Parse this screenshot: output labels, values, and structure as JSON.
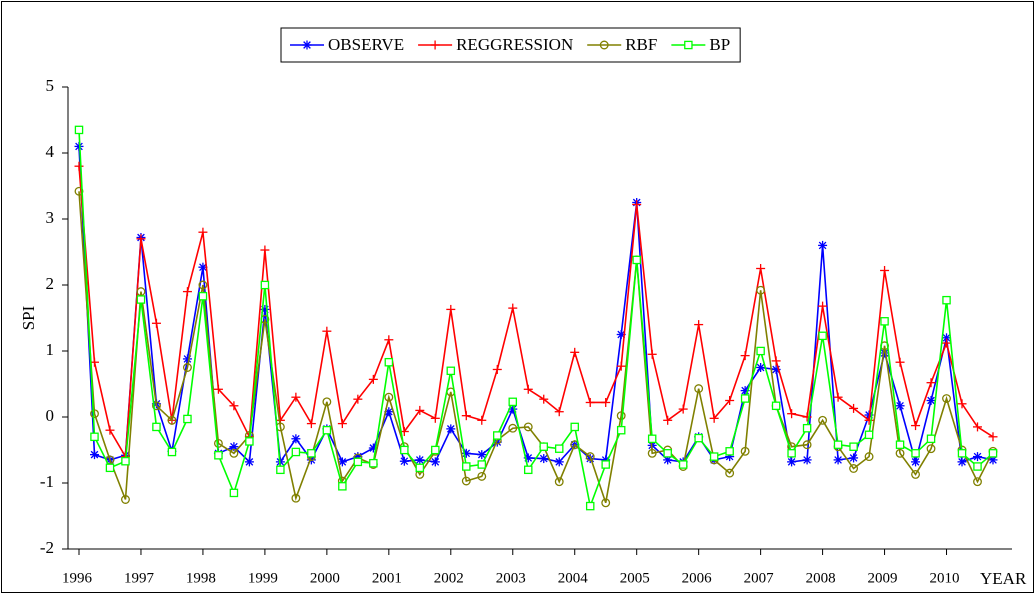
{
  "chart_data": {
    "type": "line",
    "x_label": "YEAR",
    "y_label": "SPI",
    "categories": [
      "1996",
      null,
      null,
      null,
      "1997",
      null,
      null,
      null,
      "1998",
      null,
      null,
      null,
      "1999",
      null,
      null,
      null,
      "2000",
      null,
      null,
      null,
      "2001",
      null,
      null,
      null,
      "2002",
      null,
      null,
      null,
      "2003",
      null,
      null,
      null,
      "2004",
      null,
      null,
      null,
      "2005",
      null,
      null,
      null,
      "2006",
      null,
      null,
      null,
      "2007",
      null,
      null,
      null,
      "2008",
      null,
      null,
      null,
      "2009",
      null,
      null,
      null,
      "2010",
      null,
      null,
      null
    ],
    "ylim": [
      -2,
      5
    ],
    "yticks": [
      -2,
      -1,
      0,
      1,
      2,
      3,
      4,
      5
    ],
    "legend": "top",
    "series": [
      {
        "name": "OBSERVE",
        "color": "#0000ff",
        "marker": "asterisk",
        "values": [
          4.1,
          -0.57,
          -0.65,
          -0.58,
          2.72,
          0.2,
          -0.52,
          0.88,
          2.27,
          -0.55,
          -0.45,
          -0.68,
          1.63,
          -0.68,
          -0.33,
          -0.65,
          -0.18,
          -0.68,
          -0.6,
          -0.47,
          0.08,
          -0.67,
          -0.65,
          -0.68,
          -0.18,
          -0.55,
          -0.57,
          -0.38,
          0.12,
          -0.62,
          -0.63,
          -0.68,
          -0.42,
          -0.63,
          -0.65,
          1.25,
          3.25,
          -0.43,
          -0.65,
          -0.68,
          -0.3,
          -0.65,
          -0.6,
          0.4,
          0.75,
          0.72,
          -0.68,
          -0.65,
          2.6,
          -0.65,
          -0.62,
          0.03,
          0.97,
          0.17,
          -0.68,
          0.25,
          1.2,
          -0.68,
          -0.6,
          -0.65
        ]
      },
      {
        "name": "REGGRESSION",
        "color": "#ff0000",
        "marker": "plus",
        "values": [
          3.8,
          0.83,
          -0.2,
          -0.6,
          2.7,
          1.42,
          -0.05,
          1.9,
          2.8,
          0.42,
          0.17,
          -0.3,
          2.53,
          -0.05,
          0.3,
          -0.1,
          1.3,
          -0.1,
          0.27,
          0.57,
          1.17,
          -0.22,
          0.1,
          -0.02,
          1.63,
          0.02,
          -0.05,
          0.72,
          1.65,
          0.42,
          0.27,
          0.08,
          0.98,
          0.22,
          0.22,
          0.77,
          3.22,
          0.95,
          -0.05,
          0.12,
          1.4,
          -0.02,
          0.25,
          0.93,
          2.25,
          0.85,
          0.05,
          0.0,
          1.68,
          0.3,
          0.13,
          -0.05,
          2.22,
          0.83,
          -0.13,
          0.52,
          1.12,
          0.2,
          -0.15,
          -0.3
        ]
      },
      {
        "name": "RBF",
        "color": "#808000",
        "marker": "circle",
        "values": [
          3.42,
          0.05,
          -0.65,
          -1.25,
          1.9,
          0.17,
          -0.05,
          0.75,
          2.0,
          -0.4,
          -0.55,
          -0.28,
          1.48,
          -0.15,
          -1.23,
          -0.6,
          0.23,
          -0.97,
          -0.62,
          -0.72,
          0.3,
          -0.45,
          -0.87,
          -0.52,
          0.38,
          -0.97,
          -0.9,
          -0.35,
          -0.17,
          -0.15,
          -0.45,
          -0.98,
          -0.42,
          -0.6,
          -1.3,
          0.02,
          2.38,
          -0.55,
          -0.5,
          -0.75,
          0.43,
          -0.65,
          -0.85,
          -0.52,
          1.92,
          0.17,
          -0.45,
          -0.42,
          -0.05,
          -0.45,
          -0.78,
          -0.6,
          1.08,
          -0.55,
          -0.87,
          -0.48,
          0.28,
          -0.5,
          -0.98,
          -0.52
        ]
      },
      {
        "name": "BP",
        "color": "#00ff00",
        "marker": "square",
        "values": [
          4.35,
          -0.3,
          -0.77,
          -0.67,
          1.78,
          -0.15,
          -0.53,
          -0.03,
          1.83,
          -0.58,
          -1.15,
          -0.37,
          2.0,
          -0.8,
          -0.53,
          -0.55,
          -0.2,
          -1.05,
          -0.68,
          -0.7,
          0.83,
          -0.5,
          -0.77,
          -0.5,
          0.7,
          -0.75,
          -0.72,
          -0.28,
          0.23,
          -0.8,
          -0.45,
          -0.48,
          -0.15,
          -1.35,
          -0.72,
          -0.2,
          2.38,
          -0.33,
          -0.55,
          -0.72,
          -0.32,
          -0.6,
          -0.52,
          0.28,
          1.0,
          0.17,
          -0.55,
          -0.17,
          1.23,
          -0.42,
          -0.45,
          -0.27,
          1.45,
          -0.42,
          -0.55,
          -0.33,
          1.77,
          -0.55,
          -0.75,
          -0.55
        ]
      }
    ]
  }
}
